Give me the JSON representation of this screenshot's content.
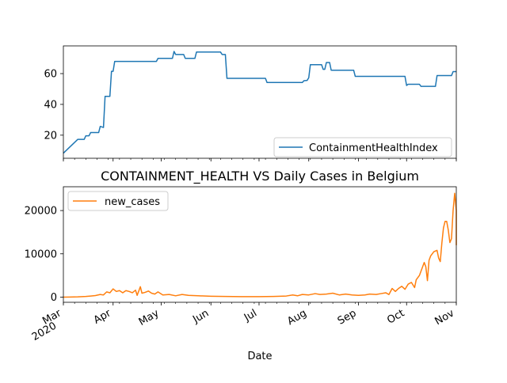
{
  "chart_data": [
    {
      "type": "line",
      "title": "",
      "xlabel": "",
      "ylabel": "",
      "x_range": [
        "2020-03-01",
        "2020-11-01"
      ],
      "ylim": [
        5,
        78
      ],
      "yticks": [
        20,
        40,
        60
      ],
      "legend": "lower-right",
      "grid": false,
      "series": [
        {
          "name": "ContainmentHealthIndex",
          "color": "#1f77b4",
          "step": true,
          "points": [
            [
              "2020-03-01",
              8.3
            ],
            [
              "2020-03-10",
              17.3
            ],
            [
              "2020-03-14",
              17.3
            ],
            [
              "2020-03-15",
              19.6
            ],
            [
              "2020-03-17",
              19.6
            ],
            [
              "2020-03-18",
              21.7
            ],
            [
              "2020-03-23",
              21.7
            ],
            [
              "2020-03-24",
              25.7
            ],
            [
              "2020-03-26",
              25.0
            ],
            [
              "2020-03-27",
              45.2
            ],
            [
              "2020-03-30",
              45.2
            ],
            [
              "2020-03-31",
              61.5
            ],
            [
              "2020-04-01",
              61.5
            ],
            [
              "2020-04-02",
              67.9
            ],
            [
              "2020-04-28",
              67.9
            ],
            [
              "2020-04-29",
              69.9
            ],
            [
              "2020-05-08",
              69.9
            ],
            [
              "2020-05-09",
              74.4
            ],
            [
              "2020-05-10",
              72.4
            ],
            [
              "2020-05-15",
              72.4
            ],
            [
              "2020-05-16",
              69.9
            ],
            [
              "2020-05-22",
              69.9
            ],
            [
              "2020-05-23",
              74.0
            ],
            [
              "2020-06-07",
              74.0
            ],
            [
              "2020-06-08",
              72.4
            ],
            [
              "2020-06-10",
              72.4
            ],
            [
              "2020-06-11",
              56.9
            ],
            [
              "2020-07-05",
              56.9
            ],
            [
              "2020-07-06",
              54.2
            ],
            [
              "2020-07-28",
              54.2
            ],
            [
              "2020-07-29",
              55.4
            ],
            [
              "2020-07-31",
              55.6
            ],
            [
              "2020-08-01",
              57.3
            ],
            [
              "2020-08-02",
              65.8
            ],
            [
              "2020-08-09",
              65.8
            ],
            [
              "2020-08-10",
              62.8
            ],
            [
              "2020-08-11",
              62.8
            ],
            [
              "2020-08-12",
              67.2
            ],
            [
              "2020-08-14",
              67.2
            ],
            [
              "2020-08-15",
              62.2
            ],
            [
              "2020-08-29",
              62.2
            ],
            [
              "2020-08-30",
              58.2
            ],
            [
              "2020-09-30",
              58.2
            ],
            [
              "2020-10-01",
              52.3
            ],
            [
              "2020-10-02",
              53.1
            ],
            [
              "2020-10-09",
              53.1
            ],
            [
              "2020-10-10",
              51.7
            ],
            [
              "2020-10-19",
              51.7
            ],
            [
              "2020-10-20",
              58.7
            ],
            [
              "2020-10-29",
              58.7
            ],
            [
              "2020-10-30",
              61.3
            ],
            [
              "2020-11-01",
              61.3
            ]
          ]
        }
      ]
    },
    {
      "type": "line",
      "title": "CONTAINMENT_HEALTH VS Daily Cases in Belgium",
      "xlabel": "Date",
      "ylabel": "",
      "x_range": [
        "2020-03-01",
        "2020-11-01"
      ],
      "ylim": [
        -1200,
        25500
      ],
      "yticks": [
        0,
        10000,
        20000
      ],
      "xticks": [
        {
          "date": "2020-03-01",
          "label": "Mar",
          "sublabel": "2020"
        },
        {
          "date": "2020-04-01",
          "label": "Apr"
        },
        {
          "date": "2020-05-01",
          "label": "May"
        },
        {
          "date": "2020-06-01",
          "label": "Jun"
        },
        {
          "date": "2020-07-01",
          "label": "Jul"
        },
        {
          "date": "2020-08-01",
          "label": "Aug"
        },
        {
          "date": "2020-09-01",
          "label": "Sep"
        },
        {
          "date": "2020-10-01",
          "label": "Oct"
        },
        {
          "date": "2020-11-01",
          "label": "Nov"
        }
      ],
      "legend": "upper-left",
      "grid": false,
      "series": [
        {
          "name": "new_cases",
          "color": "#ff7f0e",
          "points": [
            [
              "2020-03-01",
              0
            ],
            [
              "2020-03-05",
              20
            ],
            [
              "2020-03-10",
              60
            ],
            [
              "2020-03-15",
              150
            ],
            [
              "2020-03-18",
              250
            ],
            [
              "2020-03-21",
              350
            ],
            [
              "2020-03-24",
              600
            ],
            [
              "2020-03-26",
              500
            ],
            [
              "2020-03-28",
              1200
            ],
            [
              "2020-03-30",
              1000
            ],
            [
              "2020-04-01",
              1900
            ],
            [
              "2020-04-03",
              1300
            ],
            [
              "2020-04-05",
              1500
            ],
            [
              "2020-04-07",
              1000
            ],
            [
              "2020-04-09",
              1500
            ],
            [
              "2020-04-11",
              1300
            ],
            [
              "2020-04-13",
              1000
            ],
            [
              "2020-04-15",
              1600
            ],
            [
              "2020-04-16",
              400
            ],
            [
              "2020-04-18",
              2400
            ],
            [
              "2020-04-19",
              900
            ],
            [
              "2020-04-21",
              1100
            ],
            [
              "2020-04-23",
              1400
            ],
            [
              "2020-04-25",
              900
            ],
            [
              "2020-04-27",
              700
            ],
            [
              "2020-04-29",
              1200
            ],
            [
              "2020-05-02",
              500
            ],
            [
              "2020-05-06",
              600
            ],
            [
              "2020-05-10",
              300
            ],
            [
              "2020-05-14",
              600
            ],
            [
              "2020-05-18",
              400
            ],
            [
              "2020-05-24",
              300
            ],
            [
              "2020-06-01",
              200
            ],
            [
              "2020-06-10",
              150
            ],
            [
              "2020-06-20",
              100
            ],
            [
              "2020-07-01",
              100
            ],
            [
              "2020-07-10",
              150
            ],
            [
              "2020-07-18",
              250
            ],
            [
              "2020-07-22",
              500
            ],
            [
              "2020-07-25",
              300
            ],
            [
              "2020-07-28",
              600
            ],
            [
              "2020-08-01",
              500
            ],
            [
              "2020-08-05",
              800
            ],
            [
              "2020-08-08",
              600
            ],
            [
              "2020-08-12",
              700
            ],
            [
              "2020-08-16",
              900
            ],
            [
              "2020-08-20",
              500
            ],
            [
              "2020-08-24",
              700
            ],
            [
              "2020-08-28",
              500
            ],
            [
              "2020-09-01",
              400
            ],
            [
              "2020-09-05",
              500
            ],
            [
              "2020-09-08",
              700
            ],
            [
              "2020-09-12",
              600
            ],
            [
              "2020-09-15",
              800
            ],
            [
              "2020-09-18",
              1000
            ],
            [
              "2020-09-20",
              600
            ],
            [
              "2020-09-22",
              2000
            ],
            [
              "2020-09-24",
              1300
            ],
            [
              "2020-09-26",
              2000
            ],
            [
              "2020-09-28",
              2500
            ],
            [
              "2020-09-30",
              1800
            ],
            [
              "2020-10-02",
              3000
            ],
            [
              "2020-10-04",
              3400
            ],
            [
              "2020-10-06",
              2200
            ],
            [
              "2020-10-07",
              4000
            ],
            [
              "2020-10-09",
              5000
            ],
            [
              "2020-10-10",
              6000
            ],
            [
              "2020-10-12",
              8000
            ],
            [
              "2020-10-13",
              7000
            ],
            [
              "2020-10-14",
              3800
            ],
            [
              "2020-10-15",
              8500
            ],
            [
              "2020-10-16",
              9500
            ],
            [
              "2020-10-18",
              10500
            ],
            [
              "2020-10-20",
              10800
            ],
            [
              "2020-10-21",
              9000
            ],
            [
              "2020-10-22",
              8200
            ],
            [
              "2020-10-23",
              12500
            ],
            [
              "2020-10-24",
              16000
            ],
            [
              "2020-10-25",
              17500
            ],
            [
              "2020-10-26",
              17500
            ],
            [
              "2020-10-27",
              15500
            ],
            [
              "2020-10-28",
              12600
            ],
            [
              "2020-10-29",
              13500
            ],
            [
              "2020-10-30",
              20000
            ],
            [
              "2020-10-31",
              24000
            ],
            [
              "2020-11-01",
              20000
            ],
            [
              "2020-11-02",
              12000
            ]
          ]
        }
      ]
    }
  ]
}
